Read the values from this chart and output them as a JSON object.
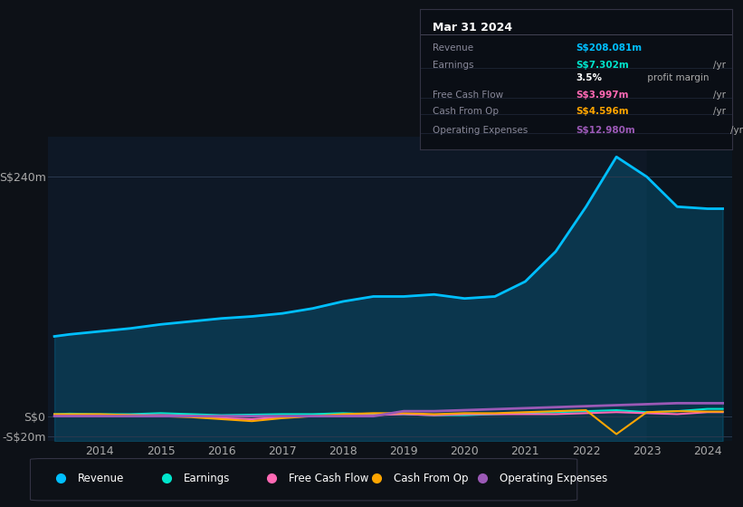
{
  "background_color": "#0d1117",
  "plot_bg_color": "#0e1826",
  "title_box": {
    "date": "Mar 31 2024",
    "rows": [
      {
        "label": "Revenue",
        "value": "S$208.081m",
        "unit": "/yr",
        "value_color": "#00bfff"
      },
      {
        "label": "Earnings",
        "value": "S$7.302m",
        "unit": "/yr",
        "value_color": "#00e5cc"
      },
      {
        "label": "",
        "value": "3.5%",
        "unit": " profit margin",
        "value_color": "#ffffff"
      },
      {
        "label": "Free Cash Flow",
        "value": "S$3.997m",
        "unit": "/yr",
        "value_color": "#ff69b4"
      },
      {
        "label": "Cash From Op",
        "value": "S$4.596m",
        "unit": "/yr",
        "value_color": "#ffa500"
      },
      {
        "label": "Operating Expenses",
        "value": "S$12.980m",
        "unit": "/yr",
        "value_color": "#9b59b6"
      }
    ]
  },
  "years": [
    2013.25,
    2013.5,
    2014.0,
    2014.5,
    2015.0,
    2015.5,
    2016.0,
    2016.5,
    2017.0,
    2017.5,
    2018.0,
    2018.5,
    2019.0,
    2019.5,
    2020.0,
    2020.5,
    2021.0,
    2021.5,
    2022.0,
    2022.5,
    2023.0,
    2023.5,
    2024.0,
    2024.25
  ],
  "revenue": [
    80,
    82,
    85,
    88,
    92,
    95,
    98,
    100,
    103,
    108,
    115,
    120,
    120,
    122,
    118,
    120,
    135,
    165,
    210,
    260,
    240,
    210,
    208,
    208
  ],
  "earnings": [
    2,
    2.5,
    2,
    2,
    3,
    2,
    1,
    1.5,
    2,
    2,
    3,
    2,
    2,
    1,
    1,
    2,
    3,
    4,
    5,
    6,
    4,
    5,
    7.3,
    7.3
  ],
  "free_cash_flow": [
    1,
    1,
    1.5,
    1,
    1,
    0.5,
    -2,
    -3,
    -1,
    0,
    1,
    1,
    2,
    1,
    2,
    2,
    2,
    2,
    3,
    4,
    3,
    2,
    4,
    4
  ],
  "cash_from_op": [
    2,
    2,
    2,
    1,
    0,
    -1,
    -3,
    -5,
    -2,
    0,
    2,
    3,
    3,
    2,
    3,
    3,
    4,
    5,
    6,
    -18,
    4,
    5,
    4.6,
    4.6
  ],
  "operating_expenses": [
    0,
    0,
    0,
    0,
    0,
    0,
    0,
    0,
    0,
    0,
    0,
    0,
    5,
    5,
    6,
    7,
    8,
    9,
    10,
    11,
    12,
    13,
    13,
    13
  ],
  "ylim": [
    -25,
    280
  ],
  "yticks": [
    -20,
    0,
    240
  ],
  "ytick_labels": [
    "-S$20m",
    "S$0",
    "S$240m"
  ],
  "xticks": [
    2014,
    2015,
    2016,
    2017,
    2018,
    2019,
    2020,
    2021,
    2022,
    2023,
    2024
  ],
  "legend": [
    {
      "label": "Revenue",
      "color": "#00bfff"
    },
    {
      "label": "Earnings",
      "color": "#00e5cc"
    },
    {
      "label": "Free Cash Flow",
      "color": "#ff69b4"
    },
    {
      "label": "Cash From Op",
      "color": "#ffa500"
    },
    {
      "label": "Operating Expenses",
      "color": "#9b59b6"
    }
  ],
  "revenue_color": "#00bfff",
  "earnings_color": "#00e5cc",
  "fcf_color": "#ff69b4",
  "cash_op_color": "#ffa500",
  "opex_color": "#9b59b6",
  "shaded_region_start": 2023.0
}
